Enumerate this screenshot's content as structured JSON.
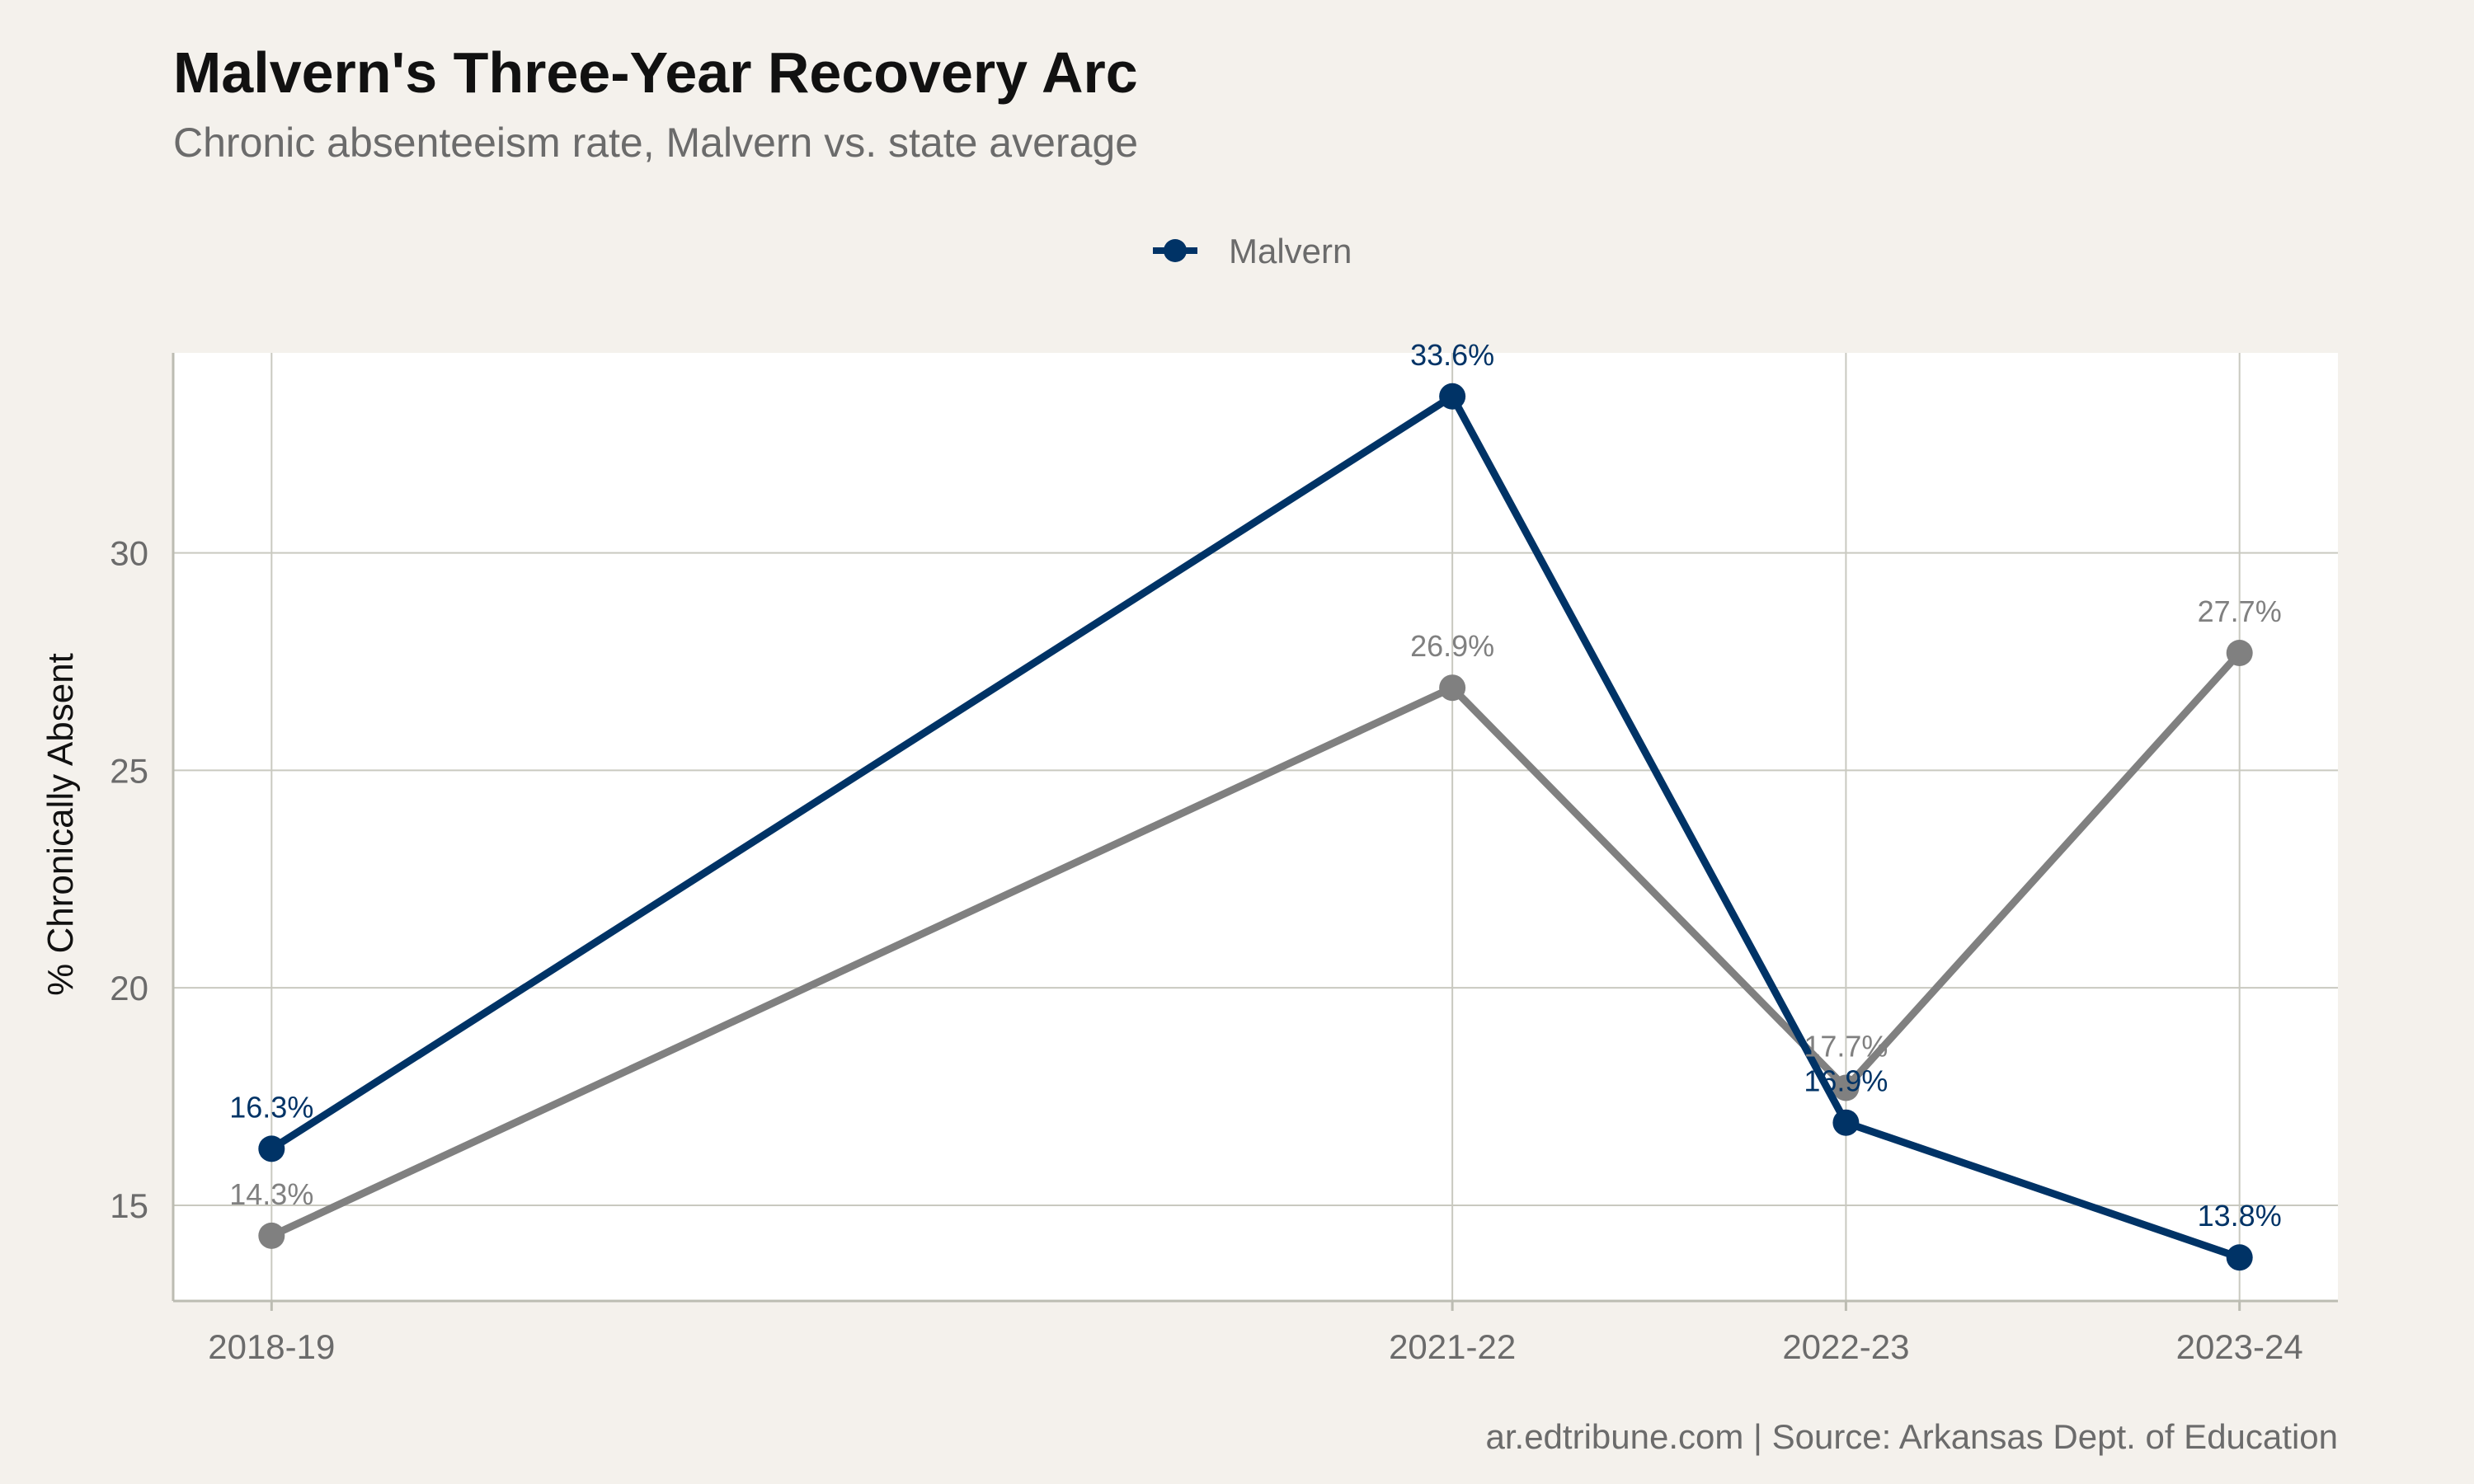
{
  "chart_data": {
    "type": "line",
    "title": "Malvern's Three-Year Recovery Arc",
    "subtitle": "Chronic absenteeism rate, Malvern vs. state average",
    "caption": "ar.edtribune.com | Source: Arkansas Dept. of Education",
    "ylabel": "% Chronically Absent",
    "xlabel": "",
    "x": [
      "2018-19",
      "2021-22",
      "2022-23",
      "2023-24"
    ],
    "x_numeric": [
      2019,
      2022,
      2023,
      2024
    ],
    "ylim": [
      12.8,
      34.6
    ],
    "yticks": [
      15,
      20,
      25,
      30
    ],
    "grid": true,
    "legend_position": "top",
    "series": [
      {
        "name": "",
        "color": "#808080",
        "values": [
          14.3,
          26.9,
          17.7,
          27.7
        ],
        "labels": [
          "14.3%",
          "26.9%",
          "17.7%",
          "27.7%"
        ]
      },
      {
        "name": "Malvern",
        "color": "#003366",
        "values": [
          16.3,
          33.6,
          16.9,
          13.8
        ],
        "labels": [
          "16.3%",
          "33.6%",
          "16.9%",
          "13.8%"
        ]
      }
    ],
    "legend": [
      {
        "label": "Malvern",
        "color": "#003366"
      }
    ]
  },
  "colors": {
    "background": "#f4f1ec",
    "panel": "#ffffff",
    "grid": "#c9c9c0",
    "axis": "#bcbcb2"
  }
}
